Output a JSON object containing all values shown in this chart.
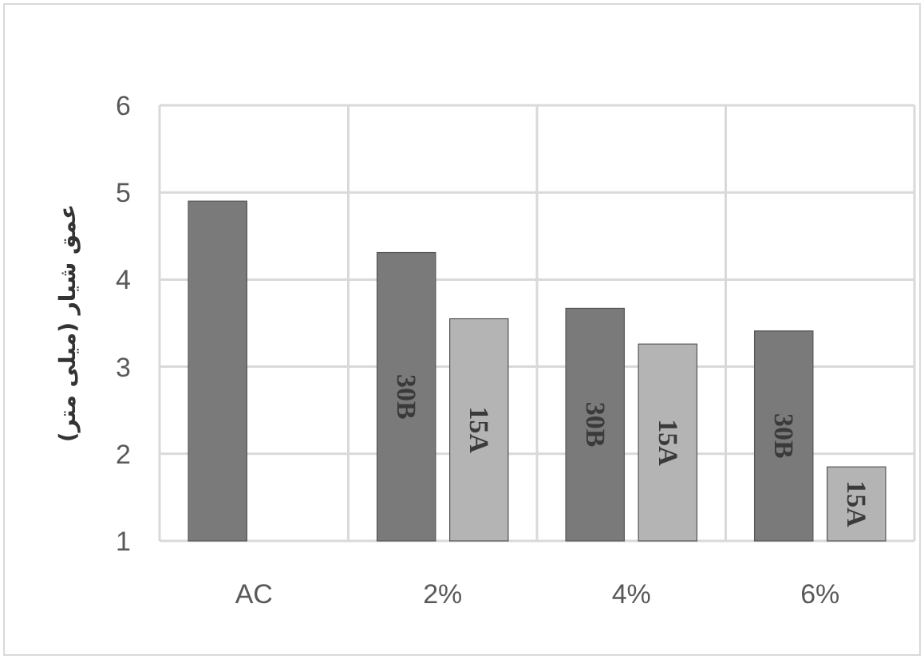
{
  "chart_data": {
    "type": "bar",
    "ylabel": "عمق شیار (میلی متر)",
    "categories": [
      "AC",
      "2%",
      "4%",
      "6%"
    ],
    "series": [
      {
        "name": "30B",
        "color": "#7a7a7a",
        "values": [
          4.9,
          4.31,
          3.67,
          3.41
        ]
      },
      {
        "name": "15A",
        "color": "#b4b4b4",
        "values": [
          null,
          3.55,
          3.26,
          1.85
        ]
      }
    ],
    "ylim": [
      1,
      6
    ],
    "yticks": [
      1,
      2,
      3,
      4,
      5,
      6
    ],
    "grid": true
  }
}
